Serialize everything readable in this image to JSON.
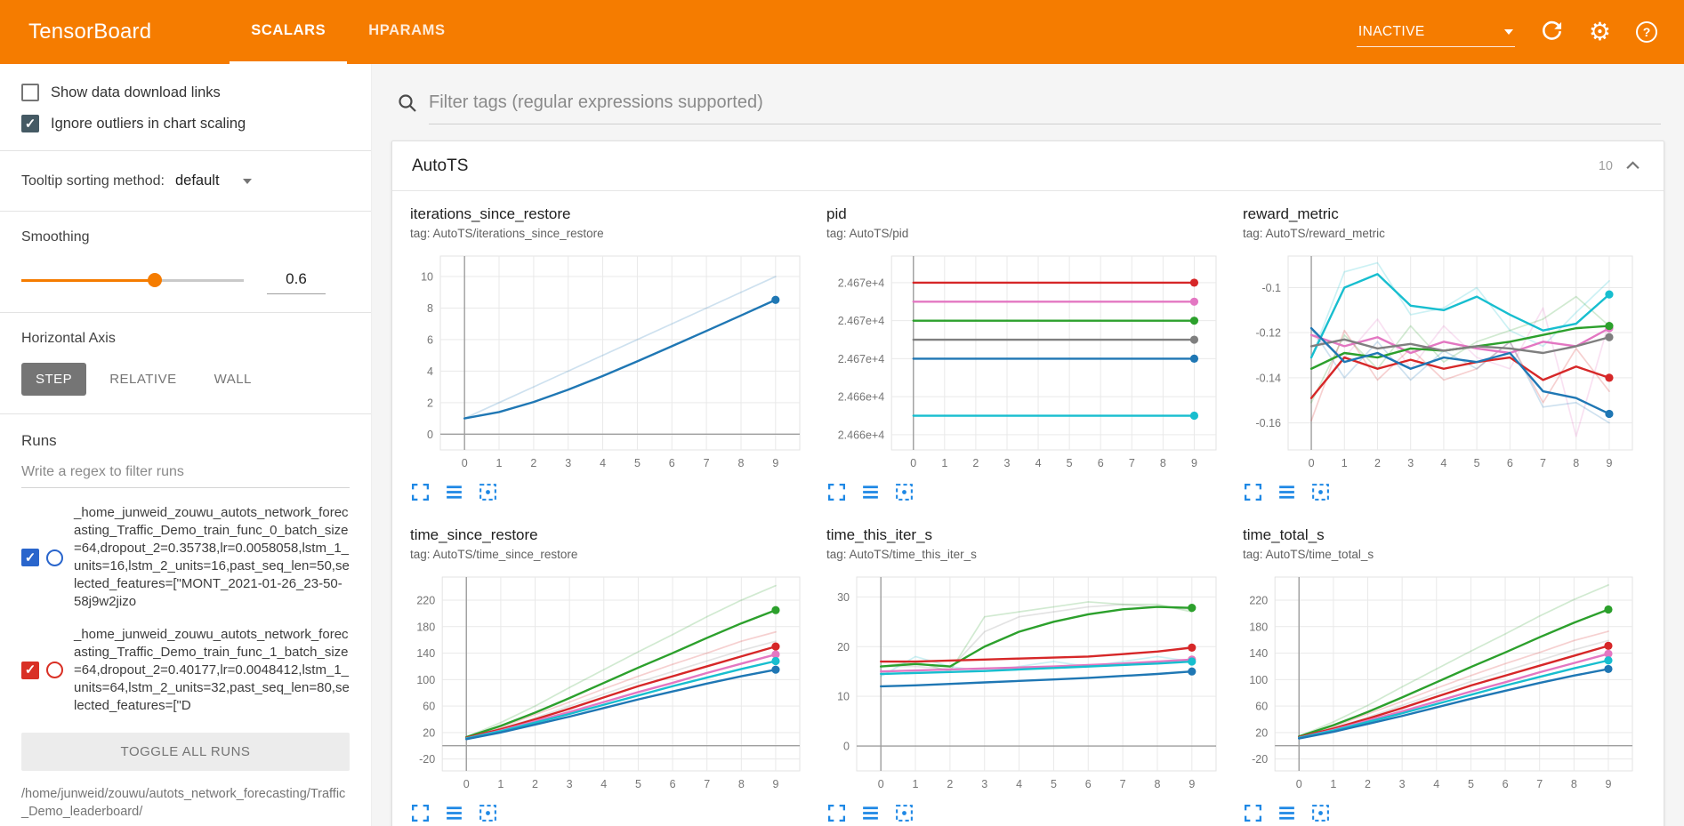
{
  "header": {
    "title": "TensorBoard",
    "tabs": [
      {
        "label": "SCALARS"
      },
      {
        "label": "HPARAMS"
      }
    ],
    "active_tab": "SCALARS",
    "status": "INACTIVE",
    "gear_glyph": "⚙",
    "help_glyph": "?"
  },
  "sidebar": {
    "options": [
      {
        "label": "Show data download links",
        "checked": false
      },
      {
        "label": "Ignore outliers in chart scaling",
        "checked": true
      }
    ],
    "tooltip_sorting": {
      "label": "Tooltip sorting method:",
      "value": "default"
    },
    "smoothing": {
      "label": "Smoothing",
      "value": "0.6",
      "percent": 60
    },
    "horizontal_axis": {
      "label": "Horizontal Axis",
      "options": [
        "STEP",
        "RELATIVE",
        "WALL"
      ],
      "selected": "STEP"
    },
    "runs": {
      "label": "Runs",
      "filter_placeholder": "Write a regex to filter runs",
      "toggle_all_label": "TOGGLE ALL RUNS",
      "log_dir": "/home/junweid/zouwu/autots_network_forecasting/Traffic_Demo_leaderboard/",
      "items": [
        {
          "label": "_home_junweid_zouwu_autots_network_forecasting_Traffic_Demo_train_func_0_batch_size=64,dropout_2=0.35738,lr=0.0058058,lstm_1_units=16,lstm_2_units=16,past_seq_len=50,selected_features=[\"MONT_2021-01-26_23-50-58j9w2jizo",
          "checked": true,
          "color": "#2965cc"
        },
        {
          "label": "_home_junweid_zouwu_autots_network_forecasting_Traffic_Demo_train_func_1_batch_size=64,dropout_2=0.40177,lr=0.0048412,lstm_1_units=64,lstm_2_units=32,past_seq_len=80,selected_features=[\"D",
          "checked": true,
          "color": "#d93025"
        }
      ]
    }
  },
  "main": {
    "filter_placeholder": "Filter tags (regular expressions supported)",
    "section": {
      "title": "AutoTS",
      "count": "10"
    }
  },
  "colors": {
    "header_orange": "#f57c00",
    "toolbar_icon_blue": "#1e88e5",
    "checkbox_dark": "#455a64"
  },
  "chart_data": [
    {
      "type": "line",
      "title": "iterations_since_restore",
      "tag": "tag: AutoTS/iterations_since_restore",
      "x": [
        0,
        1,
        2,
        3,
        4,
        5,
        6,
        7,
        8,
        9
      ],
      "xlim": [
        -0.7,
        9.7
      ],
      "ylim": [
        -1.0,
        11.3
      ],
      "yticks": [
        0,
        2,
        4,
        6,
        8,
        10
      ],
      "ytick_labels": [
        "0",
        "2",
        "4",
        "6",
        "8",
        "10"
      ],
      "series": [
        {
          "name": "blue-raw",
          "color": "#1f77b4",
          "faint": true,
          "values": [
            1,
            2,
            3,
            4,
            5,
            6,
            7,
            8,
            9,
            10
          ]
        },
        {
          "name": "blue-smoothed",
          "color": "#1f77b4",
          "values": [
            1,
            1.4,
            2.04,
            2.82,
            3.69,
            4.62,
            5.58,
            6.55,
            7.53,
            8.52
          ]
        }
      ]
    },
    {
      "type": "line",
      "title": "pid",
      "tag": "tag: AutoTS/pid",
      "x": [
        0,
        1,
        2,
        3,
        4,
        5,
        6,
        7,
        8,
        9
      ],
      "xlim": [
        -0.7,
        9.7
      ],
      "ylim": [
        24663.2,
        24673.4
      ],
      "yticks": [
        24664,
        24666,
        24668,
        24670,
        24672
      ],
      "ytick_labels": [
        "2.466e+4",
        "2.466e+4",
        "2.467e+4",
        "2.467e+4",
        "2.467e+4"
      ],
      "series": [
        {
          "name": "red",
          "color": "#d62728",
          "values": [
            24672,
            24672,
            24672,
            24672,
            24672,
            24672,
            24672,
            24672,
            24672,
            24672
          ]
        },
        {
          "name": "pink",
          "color": "#e377c2",
          "values": [
            24671,
            24671,
            24671,
            24671,
            24671,
            24671,
            24671,
            24671,
            24671,
            24671
          ]
        },
        {
          "name": "green",
          "color": "#2ca02c",
          "values": [
            24670,
            24670,
            24670,
            24670,
            24670,
            24670,
            24670,
            24670,
            24670,
            24670
          ]
        },
        {
          "name": "gray",
          "color": "#7f7f7f",
          "values": [
            24669,
            24669,
            24669,
            24669,
            24669,
            24669,
            24669,
            24669,
            24669,
            24669
          ]
        },
        {
          "name": "blue",
          "color": "#1f77b4",
          "values": [
            24668,
            24668,
            24668,
            24668,
            24668,
            24668,
            24668,
            24668,
            24668,
            24668
          ]
        },
        {
          "name": "cyan",
          "color": "#17becf",
          "values": [
            24665,
            24665,
            24665,
            24665,
            24665,
            24665,
            24665,
            24665,
            24665,
            24665
          ]
        }
      ]
    },
    {
      "type": "line",
      "title": "reward_metric",
      "tag": "tag: AutoTS/reward_metric",
      "x": [
        0,
        1,
        2,
        3,
        4,
        5,
        6,
        7,
        8,
        9
      ],
      "xlim": [
        -0.7,
        9.7
      ],
      "ylim": [
        -0.172,
        -0.086
      ],
      "yticks": [
        -0.16,
        -0.14,
        -0.12,
        -0.1
      ],
      "ytick_labels": [
        "-0.16",
        "-0.14",
        "-0.12",
        "-0.1"
      ],
      "series": [
        {
          "name": "cyan-raw",
          "color": "#17becf",
          "faint": true,
          "values": [
            -0.131,
            -0.093,
            -0.089,
            -0.112,
            -0.109,
            -0.1,
            -0.119,
            -0.126,
            -0.111,
            -0.097
          ]
        },
        {
          "name": "pink-raw",
          "color": "#e377c2",
          "faint": true,
          "values": [
            -0.121,
            -0.131,
            -0.114,
            -0.136,
            -0.117,
            -0.131,
            -0.136,
            -0.109,
            -0.166,
            -0.115
          ]
        },
        {
          "name": "green-raw",
          "color": "#2ca02c",
          "faint": true,
          "values": [
            -0.151,
            -0.121,
            -0.136,
            -0.117,
            -0.133,
            -0.124,
            -0.119,
            -0.114,
            -0.104,
            -0.117
          ]
        },
        {
          "name": "red-raw",
          "color": "#d62728",
          "faint": true,
          "values": [
            -0.159,
            -0.119,
            -0.141,
            -0.127,
            -0.141,
            -0.136,
            -0.124,
            -0.151,
            -0.127,
            -0.146
          ]
        },
        {
          "name": "blue-raw",
          "color": "#1f77b4",
          "faint": true,
          "values": [
            -0.118,
            -0.14,
            -0.124,
            -0.141,
            -0.128,
            -0.136,
            -0.124,
            -0.153,
            -0.151,
            -0.16
          ]
        },
        {
          "name": "cyan",
          "color": "#17becf",
          "values": [
            -0.131,
            -0.1,
            -0.094,
            -0.108,
            -0.11,
            -0.104,
            -0.112,
            -0.119,
            -0.116,
            -0.103
          ]
        },
        {
          "name": "red",
          "color": "#d62728",
          "values": [
            -0.149,
            -0.131,
            -0.136,
            -0.132,
            -0.136,
            -0.133,
            -0.131,
            -0.141,
            -0.135,
            -0.14
          ]
        },
        {
          "name": "pink",
          "color": "#e377c2",
          "values": [
            -0.121,
            -0.126,
            -0.122,
            -0.129,
            -0.124,
            -0.127,
            -0.129,
            -0.124,
            -0.126,
            -0.118
          ]
        },
        {
          "name": "green",
          "color": "#2ca02c",
          "values": [
            -0.136,
            -0.129,
            -0.131,
            -0.127,
            -0.128,
            -0.126,
            -0.124,
            -0.121,
            -0.118,
            -0.117
          ]
        },
        {
          "name": "gray",
          "color": "#7f7f7f",
          "values": [
            -0.126,
            -0.123,
            -0.127,
            -0.125,
            -0.128,
            -0.126,
            -0.127,
            -0.129,
            -0.126,
            -0.122
          ]
        },
        {
          "name": "blue",
          "color": "#1f77b4",
          "values": [
            -0.118,
            -0.133,
            -0.129,
            -0.136,
            -0.131,
            -0.133,
            -0.129,
            -0.146,
            -0.149,
            -0.156
          ]
        }
      ]
    },
    {
      "type": "line",
      "title": "time_since_restore",
      "tag": "tag: AutoTS/time_since_restore",
      "x": [
        0,
        1,
        2,
        3,
        4,
        5,
        6,
        7,
        8,
        9
      ],
      "xlim": [
        -0.7,
        9.7
      ],
      "ylim": [
        -38,
        255
      ],
      "yticks": [
        -20,
        20,
        60,
        100,
        140,
        180,
        220
      ],
      "ytick_labels": [
        "-20",
        "20",
        "60",
        "100",
        "140",
        "180",
        "220"
      ],
      "series": [
        {
          "name": "green-raw",
          "color": "#2ca02c",
          "faint": true,
          "values": [
            13,
            35,
            60,
            88,
            115,
            142,
            168,
            195,
            220,
            242
          ]
        },
        {
          "name": "red-raw",
          "color": "#d62728",
          "faint": true,
          "values": [
            12,
            28,
            47,
            66,
            86,
            105,
            123,
            140,
            158,
            172
          ]
        },
        {
          "name": "gray-raw",
          "color": "#7f7f7f",
          "faint": true,
          "values": [
            12,
            26,
            42,
            60,
            78,
            96,
            112,
            128,
            144,
            158
          ]
        },
        {
          "name": "green",
          "color": "#2ca02c",
          "values": [
            13,
            30,
            50,
            72,
            95,
            118,
            140,
            163,
            185,
            205
          ]
        },
        {
          "name": "red",
          "color": "#d62728",
          "values": [
            12,
            25,
            40,
            56,
            73,
            90,
            105,
            120,
            135,
            150
          ]
        },
        {
          "name": "pink",
          "color": "#e377c2",
          "values": [
            11,
            23,
            37,
            51,
            66,
            81,
            95,
            110,
            124,
            138
          ]
        },
        {
          "name": "cyan",
          "color": "#17becf",
          "values": [
            11,
            22,
            35,
            48,
            62,
            76,
            90,
            103,
            116,
            128
          ]
        },
        {
          "name": "blue",
          "color": "#1f77b4",
          "values": [
            10,
            20,
            32,
            44,
            57,
            70,
            82,
            94,
            105,
            115
          ]
        }
      ]
    },
    {
      "type": "line",
      "title": "time_this_iter_s",
      "tag": "tag: AutoTS/time_this_iter_s",
      "x": [
        0,
        1,
        2,
        3,
        4,
        5,
        6,
        7,
        8,
        9
      ],
      "xlim": [
        -0.7,
        9.7
      ],
      "ylim": [
        -5,
        34
      ],
      "yticks": [
        0,
        10,
        20,
        30
      ],
      "ytick_labels": [
        "0",
        "10",
        "20",
        "30"
      ],
      "series": [
        {
          "name": "gray-raw",
          "color": "#7f7f7f",
          "faint": true,
          "values": [
            16,
            16,
            15.5,
            23,
            26,
            27,
            28,
            28.5,
            28,
            27.5
          ]
        },
        {
          "name": "green-raw",
          "color": "#2ca02c",
          "faint": true,
          "values": [
            16,
            17,
            15,
            26,
            27,
            28,
            29,
            28.5,
            28.5,
            27
          ]
        },
        {
          "name": "cyan-raw",
          "color": "#17becf",
          "faint": true,
          "values": [
            14,
            18,
            16,
            15,
            16,
            17,
            16,
            17,
            18,
            17
          ]
        },
        {
          "name": "green",
          "color": "#2ca02c",
          "values": [
            16,
            16.5,
            16,
            20,
            23,
            25,
            26.5,
            27.5,
            28,
            27.8
          ]
        },
        {
          "name": "red",
          "color": "#d62728",
          "values": [
            17,
            17,
            17.2,
            17.4,
            17.6,
            17.8,
            18,
            18.5,
            19,
            19.8
          ]
        },
        {
          "name": "pink",
          "color": "#e377c2",
          "values": [
            15,
            15.2,
            15.4,
            15.6,
            15.8,
            16,
            16.3,
            16.6,
            17,
            17.4
          ]
        },
        {
          "name": "cyan",
          "color": "#17becf",
          "values": [
            14.5,
            14.7,
            14.9,
            15.1,
            15.4,
            15.7,
            16,
            16.3,
            16.6,
            17
          ]
        },
        {
          "name": "blue",
          "color": "#1f77b4",
          "values": [
            12,
            12.2,
            12.5,
            12.8,
            13.1,
            13.4,
            13.7,
            14.1,
            14.5,
            15
          ]
        }
      ]
    },
    {
      "type": "line",
      "title": "time_total_s",
      "tag": "tag: AutoTS/time_total_s",
      "x": [
        0,
        1,
        2,
        3,
        4,
        5,
        6,
        7,
        8,
        9
      ],
      "xlim": [
        -0.7,
        9.7
      ],
      "ylim": [
        -38,
        255
      ],
      "yticks": [
        -20,
        20,
        60,
        100,
        140,
        180,
        220
      ],
      "ytick_labels": [
        "-20",
        "20",
        "60",
        "100",
        "140",
        "180",
        "220"
      ],
      "series": [
        {
          "name": "green-raw",
          "color": "#2ca02c",
          "faint": true,
          "values": [
            14,
            36,
            61,
            89,
            116,
            143,
            169,
            196,
            221,
            243
          ]
        },
        {
          "name": "red-raw",
          "color": "#d62728",
          "faint": true,
          "values": [
            13,
            29,
            48,
            67,
            87,
            106,
            124,
            141,
            159,
            173
          ]
        },
        {
          "name": "gray-raw",
          "color": "#7f7f7f",
          "faint": true,
          "values": [
            13,
            27,
            43,
            61,
            79,
            97,
            113,
            129,
            145,
            159
          ]
        },
        {
          "name": "green",
          "color": "#2ca02c",
          "values": [
            14,
            31,
            51,
            73,
            96,
            119,
            141,
            164,
            186,
            206
          ]
        },
        {
          "name": "red",
          "color": "#d62728",
          "values": [
            13,
            26,
            41,
            57,
            74,
            91,
            106,
            121,
            136,
            151
          ]
        },
        {
          "name": "pink",
          "color": "#e377c2",
          "values": [
            12,
            24,
            38,
            52,
            67,
            82,
            96,
            111,
            125,
            139
          ]
        },
        {
          "name": "cyan",
          "color": "#17becf",
          "values": [
            12,
            23,
            36,
            49,
            63,
            77,
            91,
            104,
            117,
            129
          ]
        },
        {
          "name": "blue",
          "color": "#1f77b4",
          "values": [
            11,
            21,
            33,
            45,
            58,
            71,
            83,
            95,
            106,
            116
          ]
        }
      ]
    }
  ]
}
